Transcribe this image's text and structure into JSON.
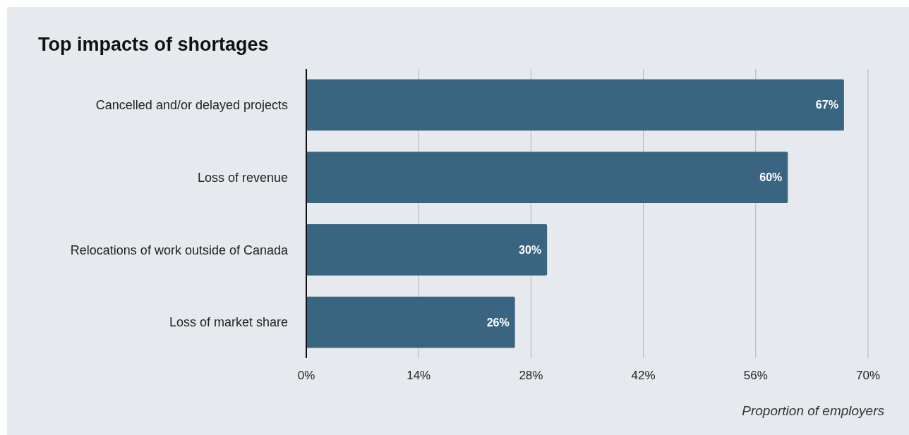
{
  "chart_data": {
    "type": "bar",
    "orientation": "horizontal",
    "title": "Top impacts of shortages",
    "xlabel": "Proportion of employers",
    "categories": [
      "Cancelled and/or delayed projects",
      "Loss of revenue",
      "Relocations of work outside of Canada",
      "Loss of market share"
    ],
    "values": [
      67,
      60,
      30,
      26
    ],
    "value_labels": [
      "67%",
      "60%",
      "30%",
      "26%"
    ],
    "color": "#3a6580",
    "xlim": [
      0,
      70
    ],
    "xticks": [
      {
        "value": 0,
        "label": "0%"
      },
      {
        "value": 14,
        "label": "14%"
      },
      {
        "value": 28,
        "label": "28%"
      },
      {
        "value": 42,
        "label": "42%"
      },
      {
        "value": 56,
        "label": "56%"
      },
      {
        "value": 70,
        "label": "70%"
      }
    ],
    "grid": "x"
  }
}
